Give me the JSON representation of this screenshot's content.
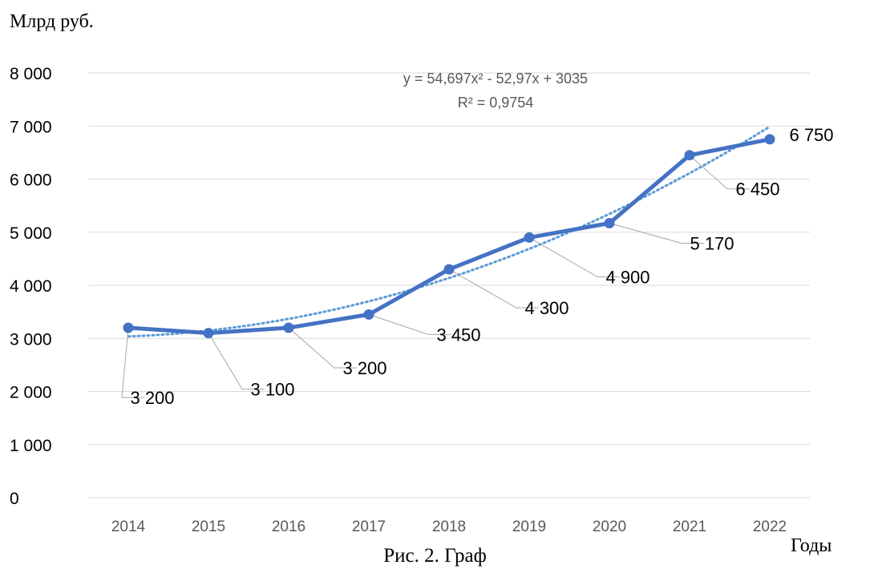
{
  "chart_data": {
    "type": "line",
    "ylabel": "Млрд руб.",
    "xlabel": "Годы",
    "caption": "Рис. 2. Граф",
    "categories": [
      "2014",
      "2015",
      "2016",
      "2017",
      "2018",
      "2019",
      "2020",
      "2021",
      "2022"
    ],
    "series": [
      {
        "values": [
          3200,
          3100,
          3200,
          3450,
          4300,
          4900,
          5170,
          6450,
          6750
        ],
        "color": "#4472C4"
      }
    ],
    "data_labels": [
      "3 200",
      "3 100",
      "3 200",
      "3 450",
      "4 300",
      "4 900",
      "5 170",
      "6 450",
      "6 750"
    ],
    "trendline": {
      "type": "polynomial",
      "order": 2,
      "coefficients": [
        54.697,
        -52.97,
        3035
      ],
      "equation": "y = 54,697x² - 52,97x + 3035",
      "r2": "R² = 0,9754",
      "color": "#5B9BD5",
      "style": "dotted"
    },
    "ylim": [
      0,
      8000
    ],
    "yticks": [
      0,
      1000,
      2000,
      3000,
      4000,
      5000,
      6000,
      7000,
      8000
    ],
    "ytick_labels": [
      "0",
      "1 000",
      "2 000",
      "3 000",
      "4 000",
      "5 000",
      "6 000",
      "7 000",
      "8 000"
    ],
    "grid": true,
    "gridline_color": "#D9D9D9"
  }
}
